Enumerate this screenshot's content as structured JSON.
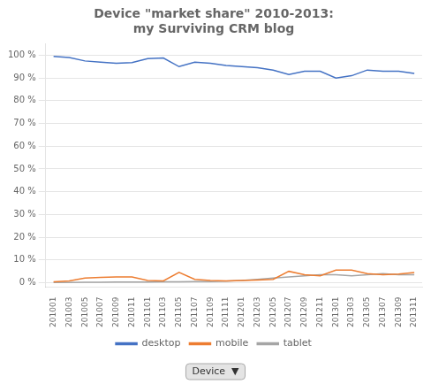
{
  "chart_data": {
    "type": "line",
    "title": "Device \"market share\" 2010-2013:\nmy Surviving CRM blog",
    "categories": [
      "201001",
      "201003",
      "201005",
      "201007",
      "201009",
      "201011",
      "201101",
      "201103",
      "201105",
      "201107",
      "201109",
      "201111",
      "201201",
      "201203",
      "201205",
      "201207",
      "201209",
      "201211",
      "201301",
      "201303",
      "201305",
      "201307",
      "201309",
      "201311"
    ],
    "series": [
      {
        "name": "desktop",
        "color": "#4472C4",
        "values": [
          99.5,
          99.0,
          97.5,
          97.0,
          96.5,
          96.8,
          98.5,
          98.8,
          95.0,
          97.0,
          96.5,
          95.5,
          95.0,
          94.5,
          93.5,
          91.5,
          93.0,
          93.0,
          90.0,
          91.0,
          93.5,
          93.0,
          93.0,
          92.0
        ]
      },
      {
        "name": "mobile",
        "color": "#ED7D31",
        "values": [
          0.4,
          0.8,
          2.0,
          2.3,
          2.5,
          2.5,
          1.0,
          0.8,
          4.5,
          1.5,
          1.0,
          0.8,
          1.0,
          1.2,
          1.5,
          5.0,
          3.5,
          3.0,
          5.5,
          5.5,
          4.0,
          3.5,
          3.8,
          4.5
        ]
      },
      {
        "name": "tablet",
        "color": "#A5A5A5",
        "values": [
          0.1,
          0.1,
          0.2,
          0.2,
          0.3,
          0.3,
          0.3,
          0.4,
          0.4,
          0.5,
          0.5,
          0.7,
          1.0,
          1.5,
          2.0,
          2.5,
          3.0,
          3.5,
          3.5,
          3.0,
          3.5,
          4.0,
          3.5,
          3.5
        ]
      }
    ],
    "ylim": [
      -2,
      105
    ],
    "yticks": [
      {
        "value": 0,
        "label": "0 %"
      },
      {
        "value": 10,
        "label": "10 %"
      },
      {
        "value": 20,
        "label": "20 %"
      },
      {
        "value": 30,
        "label": "30 %"
      },
      {
        "value": 40,
        "label": "40 %"
      },
      {
        "value": 50,
        "label": "50 %"
      },
      {
        "value": 60,
        "label": "60 %"
      },
      {
        "value": 70,
        "label": "70 %"
      },
      {
        "value": 80,
        "label": "80 %"
      },
      {
        "value": 90,
        "label": "90 %"
      },
      {
        "value": 100,
        "label": "100 %"
      }
    ],
    "grid": true,
    "legend": "bottom",
    "annotations": [
      "Device  ▼"
    ]
  }
}
